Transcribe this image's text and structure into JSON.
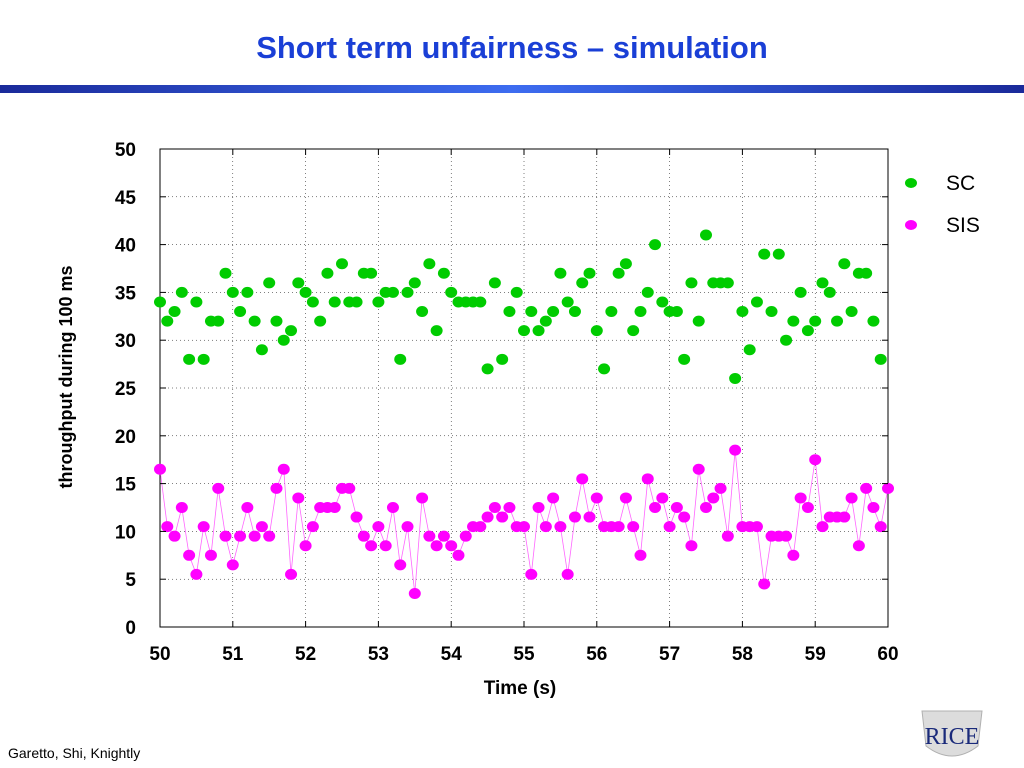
{
  "slide": {
    "title": "Short term unfairness – simulation",
    "footer": "Garetto, Shi, Knightly",
    "logo_text": "RICE"
  },
  "colors": {
    "title": "#1a3fd6",
    "sc": "#00cc00",
    "sis": "#ff00ff",
    "sis_line": "#ff66ff"
  },
  "chart_data": {
    "type": "scatter",
    "xlabel": "Time (s)",
    "ylabel": "throughput during 100 ms",
    "xlim": [
      50,
      60
    ],
    "ylim": [
      0,
      50
    ],
    "x_ticks": [
      "50",
      "51",
      "52",
      "53",
      "54",
      "55",
      "56",
      "57",
      "58",
      "59",
      "60"
    ],
    "y_ticks": [
      "0",
      "5",
      "10",
      "15",
      "20",
      "25",
      "30",
      "35",
      "40",
      "45",
      "50"
    ],
    "grid": true,
    "legend_position": "right",
    "x": [
      50.0,
      50.1,
      50.2,
      50.3,
      50.4,
      50.5,
      50.6,
      50.7,
      50.8,
      50.9,
      51.0,
      51.1,
      51.2,
      51.3,
      51.4,
      51.5,
      51.6,
      51.7,
      51.8,
      51.9,
      52.0,
      52.1,
      52.2,
      52.3,
      52.4,
      52.5,
      52.6,
      52.7,
      52.8,
      52.9,
      53.0,
      53.1,
      53.2,
      53.3,
      53.4,
      53.5,
      53.6,
      53.7,
      53.8,
      53.9,
      54.0,
      54.1,
      54.2,
      54.3,
      54.4,
      54.5,
      54.6,
      54.7,
      54.8,
      54.9,
      55.0,
      55.1,
      55.2,
      55.3,
      55.4,
      55.5,
      55.6,
      55.7,
      55.8,
      55.9,
      56.0,
      56.1,
      56.2,
      56.3,
      56.4,
      56.5,
      56.6,
      56.7,
      56.8,
      56.9,
      57.0,
      57.1,
      57.2,
      57.3,
      57.4,
      57.5,
      57.6,
      57.7,
      57.8,
      57.9,
      58.0,
      58.1,
      58.2,
      58.3,
      58.4,
      58.5,
      58.6,
      58.7,
      58.8,
      58.9,
      59.0,
      59.1,
      59.2,
      59.3,
      59.4,
      59.5,
      59.6,
      59.7,
      59.8,
      59.9,
      60.0
    ],
    "series": [
      {
        "name": "SC",
        "color": "#00cc00",
        "marker": "ellipse",
        "line": false,
        "values": [
          34,
          32,
          33,
          35,
          28,
          34,
          28,
          32,
          32,
          37,
          35,
          33,
          35,
          32,
          29,
          36,
          32,
          30,
          31,
          36,
          35,
          34,
          32,
          37,
          34,
          38,
          34,
          34,
          37,
          37,
          34,
          35,
          35,
          28,
          35,
          36,
          33,
          38,
          31,
          37,
          35,
          34,
          34,
          34,
          34,
          27,
          36,
          28,
          33,
          35,
          31,
          33,
          31,
          32,
          33,
          37,
          34,
          33,
          36,
          37,
          31,
          27,
          33,
          37,
          38,
          31,
          33,
          35,
          40,
          34,
          33,
          33,
          28,
          36,
          32,
          41,
          36,
          36,
          36,
          26,
          33,
          29,
          34,
          39,
          33,
          39,
          30,
          32,
          35,
          31,
          32,
          36,
          35,
          32,
          38,
          33,
          37,
          37,
          32,
          28,
          null
        ]
      },
      {
        "name": "SIS",
        "color": "#ff00ff",
        "marker": "ellipse",
        "line": true,
        "values": [
          16.5,
          10.5,
          9.5,
          12.5,
          7.5,
          5.5,
          10.5,
          7.5,
          14.5,
          9.5,
          6.5,
          9.5,
          12.5,
          9.5,
          10.5,
          9.5,
          14.5,
          16.5,
          5.5,
          13.5,
          8.5,
          10.5,
          12.5,
          12.5,
          12.5,
          14.5,
          14.5,
          11.5,
          9.5,
          8.5,
          10.5,
          8.5,
          12.5,
          6.5,
          10.5,
          3.5,
          13.5,
          9.5,
          8.5,
          9.5,
          8.5,
          7.5,
          9.5,
          10.5,
          10.5,
          11.5,
          12.5,
          11.5,
          12.5,
          10.5,
          10.5,
          5.5,
          12.5,
          10.5,
          13.5,
          10.5,
          5.5,
          11.5,
          15.5,
          11.5,
          13.5,
          10.5,
          10.5,
          10.5,
          13.5,
          10.5,
          7.5,
          15.5,
          12.5,
          13.5,
          10.5,
          12.5,
          11.5,
          8.5,
          16.5,
          12.5,
          13.5,
          14.5,
          9.5,
          18.5,
          10.5,
          10.5,
          10.5,
          4.5,
          9.5,
          9.5,
          9.5,
          7.5,
          13.5,
          12.5,
          17.5,
          10.5,
          11.5,
          11.5,
          11.5,
          13.5,
          8.5,
          14.5,
          12.5,
          10.5,
          14.5
        ]
      }
    ]
  }
}
